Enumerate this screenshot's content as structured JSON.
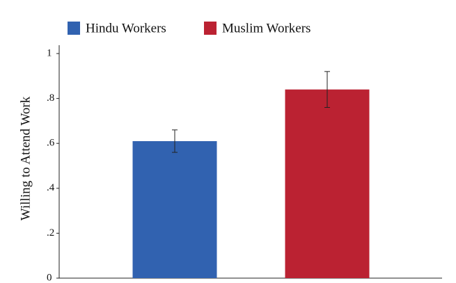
{
  "chart_data": {
    "type": "bar",
    "y_label": "Willing to Attend Work",
    "series": [
      {
        "name": "Hindu Workers",
        "color": "#3162b0",
        "values": [
          0.61
        ],
        "errors": [
          0.05
        ]
      },
      {
        "name": "Muslim Workers",
        "color": "#bb2232",
        "values": [
          0.84
        ],
        "errors": [
          0.08
        ]
      }
    ],
    "ylim": [
      0,
      1
    ],
    "yticks": [
      0,
      {
        "value": 0.2,
        "label": ".2"
      },
      {
        "value": 0.4,
        "label": ".4"
      },
      {
        "value": 0.6,
        "label": ".6"
      },
      {
        "value": 0.8,
        "label": ".8"
      },
      1
    ],
    "grid": false
  }
}
